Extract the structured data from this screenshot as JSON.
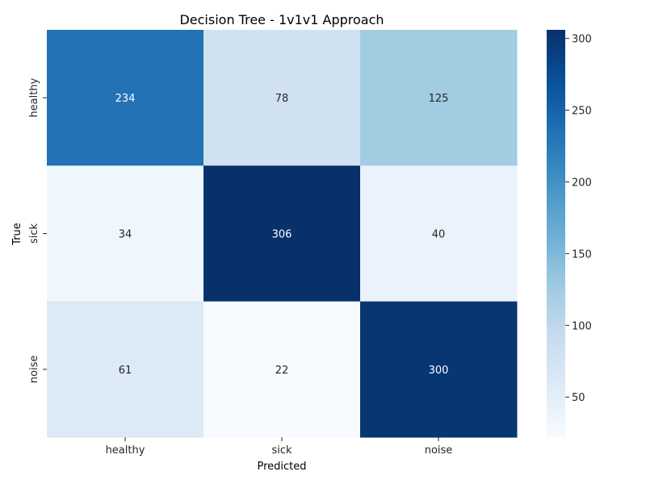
{
  "chart_data": {
    "type": "heatmap",
    "title": "Decision Tree - 1v1v1 Approach",
    "xlabel": "Predicted",
    "ylabel": "True",
    "x_categories": [
      "healthy",
      "sick",
      "noise"
    ],
    "y_categories": [
      "healthy",
      "sick",
      "noise"
    ],
    "values": [
      [
        234,
        78,
        125
      ],
      [
        34,
        306,
        40
      ],
      [
        61,
        22,
        300
      ]
    ],
    "colormap": "Blues",
    "colorbar": {
      "range": [
        22,
        306
      ],
      "ticks": [
        50,
        100,
        150,
        200,
        250,
        300
      ],
      "tick_labels": [
        "50",
        "100",
        "150",
        "200",
        "250",
        "300"
      ]
    },
    "colors": {
      "low": "#f7fbff",
      "high": "#08306b"
    }
  }
}
